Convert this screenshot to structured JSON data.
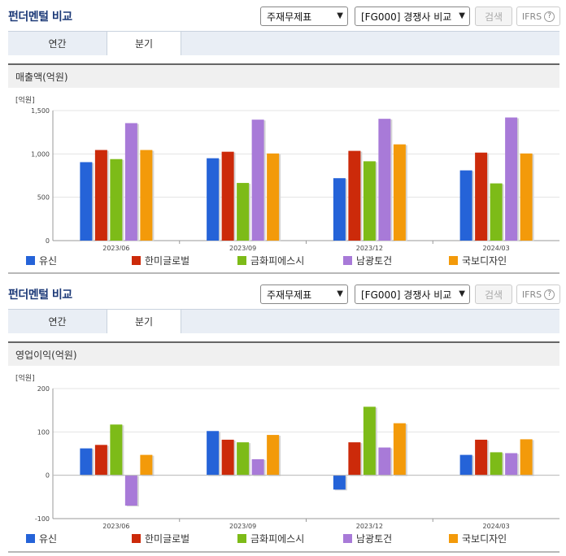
{
  "panels": [
    {
      "title": "펀더멘털 비교",
      "select1": "주재무제표",
      "select2": "[FG000] 경쟁사 비교",
      "search_label": "검색",
      "ifrs_label": "IFRS",
      "tabs": [
        "연간",
        "분기"
      ],
      "subtitle": "매출액(억원)"
    },
    {
      "title": "펀더멘털 비교",
      "select1": "주재무제표",
      "select2": "[FG000] 경쟁사 비교",
      "search_label": "검색",
      "ifrs_label": "IFRS",
      "tabs": [
        "연간",
        "분기"
      ],
      "subtitle": "영업이익(억원)"
    }
  ],
  "chart_data": [
    {
      "type": "bar",
      "unit_label": "[억원]",
      "categories": [
        "2023/06",
        "2023/09",
        "2023/12",
        "2024/03"
      ],
      "ylim": [
        0,
        1500
      ],
      "yticks": [
        "0",
        "500",
        "1,000",
        "1,500"
      ],
      "ytick_values": [
        0,
        500,
        1000,
        1500
      ],
      "grid": true,
      "legend": "bottom",
      "series": [
        {
          "name": "유신",
          "color": "#2563d8",
          "values": [
            905,
            950,
            720,
            810
          ]
        },
        {
          "name": "한미글로벌",
          "color": "#cc2a0a",
          "values": [
            1045,
            1025,
            1035,
            1015
          ]
        },
        {
          "name": "금화피에스시",
          "color": "#7dbb18",
          "values": [
            940,
            665,
            915,
            660
          ]
        },
        {
          "name": "남광토건",
          "color": "#a87ad8",
          "values": [
            1355,
            1395,
            1405,
            1420
          ]
        },
        {
          "name": "국보디자인",
          "color": "#f39a0a",
          "values": [
            1045,
            1005,
            1110,
            1005
          ]
        }
      ]
    },
    {
      "type": "bar",
      "unit_label": "[억원]",
      "categories": [
        "2023/06",
        "2023/09",
        "2023/12",
        "2024/03"
      ],
      "ylim": [
        -100,
        200
      ],
      "yticks": [
        "-100",
        "0",
        "100",
        "200"
      ],
      "ytick_values": [
        -100,
        0,
        100,
        200
      ],
      "grid": true,
      "legend": "bottom",
      "series": [
        {
          "name": "유신",
          "color": "#2563d8",
          "values": [
            62,
            102,
            -33,
            47
          ]
        },
        {
          "name": "한미글로벌",
          "color": "#cc2a0a",
          "values": [
            70,
            82,
            76,
            82
          ]
        },
        {
          "name": "금화피에스시",
          "color": "#7dbb18",
          "values": [
            117,
            76,
            158,
            53
          ]
        },
        {
          "name": "남광토건",
          "color": "#a87ad8",
          "values": [
            -70,
            37,
            64,
            51
          ]
        },
        {
          "name": "국보디자인",
          "color": "#f39a0a",
          "values": [
            47,
            93,
            120,
            83
          ]
        }
      ]
    }
  ]
}
